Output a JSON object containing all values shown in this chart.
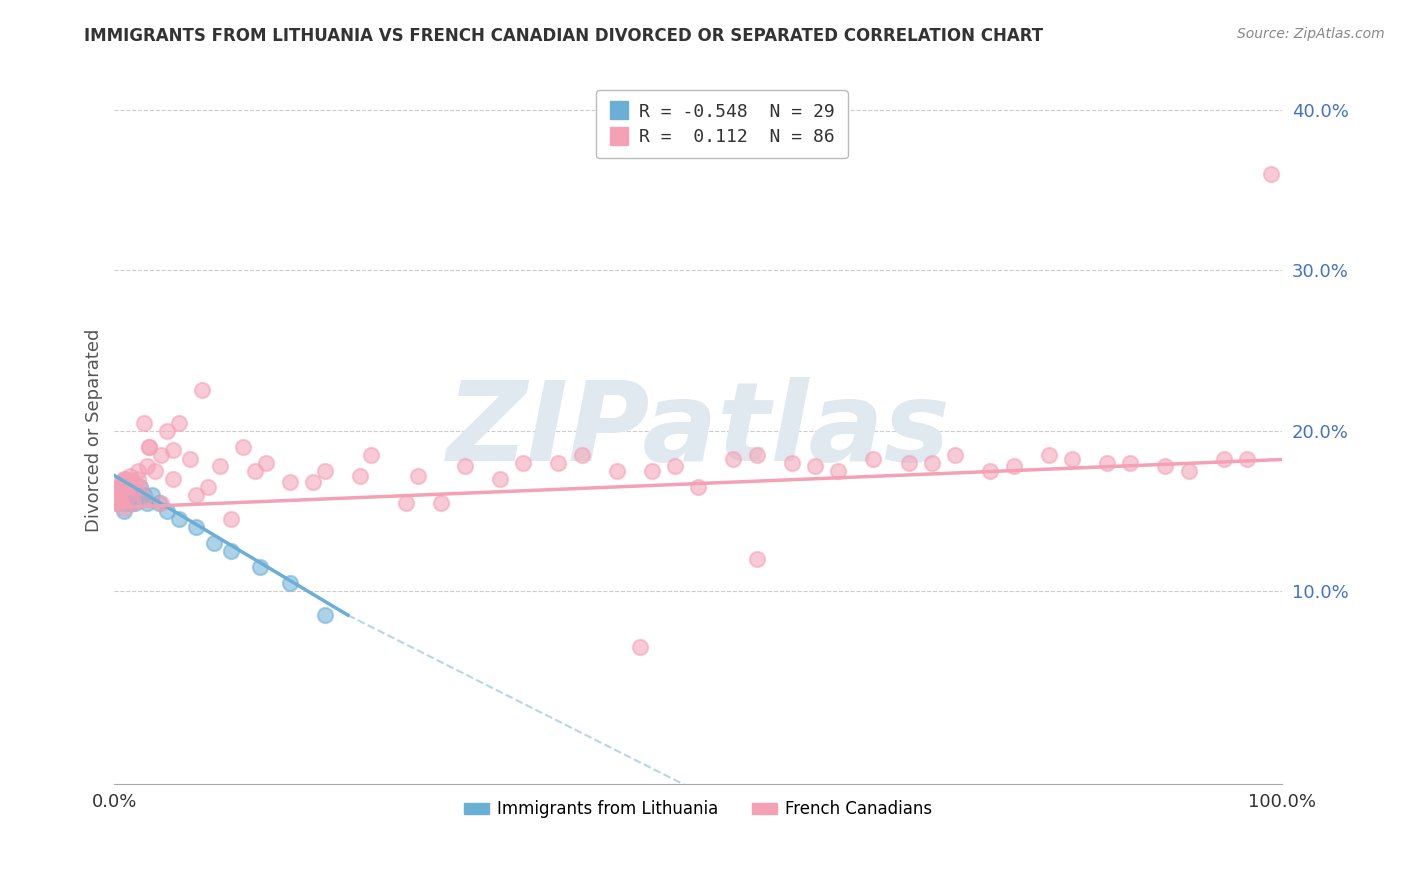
{
  "title": "IMMIGRANTS FROM LITHUANIA VS FRENCH CANADIAN DIVORCED OR SEPARATED CORRELATION CHART",
  "source": "Source: ZipAtlas.com",
  "ylabel": "Divorced or Separated",
  "watermark": "ZIPatlas",
  "legend_entries": [
    {
      "label": "Immigrants from Lithuania",
      "R": -0.548,
      "N": 29,
      "color": "#6baed6"
    },
    {
      "label": "French Canadians",
      "R": 0.112,
      "N": 86,
      "color": "#f4a0b5"
    }
  ],
  "blue_scatter_x": [
    0.2,
    0.3,
    0.4,
    0.5,
    0.6,
    0.7,
    0.8,
    0.9,
    1.0,
    1.1,
    1.2,
    1.3,
    1.5,
    1.6,
    1.8,
    2.0,
    2.2,
    2.5,
    2.8,
    3.2,
    3.8,
    4.5,
    5.5,
    7.0,
    8.5,
    10.0,
    12.5,
    15.0,
    18.0
  ],
  "blue_scatter_y": [
    15.5,
    16.2,
    15.8,
    16.0,
    15.5,
    16.5,
    15.0,
    15.8,
    16.2,
    15.5,
    16.0,
    16.5,
    15.5,
    16.0,
    15.5,
    16.0,
    16.5,
    16.0,
    15.5,
    16.0,
    15.5,
    15.0,
    14.5,
    14.0,
    13.0,
    12.5,
    11.5,
    10.5,
    8.5
  ],
  "pink_scatter_x": [
    0.1,
    0.2,
    0.3,
    0.4,
    0.5,
    0.6,
    0.7,
    0.8,
    0.9,
    1.0,
    1.1,
    1.2,
    1.3,
    1.5,
    1.6,
    1.8,
    2.0,
    2.2,
    2.5,
    2.8,
    3.0,
    3.5,
    4.0,
    4.5,
    5.0,
    5.5,
    6.5,
    7.5,
    9.0,
    11.0,
    13.0,
    15.0,
    18.0,
    22.0,
    26.0,
    30.0,
    35.0,
    40.0,
    46.0,
    50.0,
    55.0,
    60.0,
    65.0,
    70.0,
    75.0,
    80.0,
    85.0,
    90.0,
    95.0,
    99.0,
    28.0,
    33.0,
    38.0,
    43.0,
    48.0,
    53.0,
    58.0,
    62.0,
    68.0,
    72.0,
    77.0,
    82.0,
    87.0,
    92.0,
    97.0,
    8.0,
    12.0,
    17.0,
    21.0,
    25.0,
    5.0,
    3.0,
    2.0,
    1.5,
    1.0,
    0.8,
    0.6,
    0.5,
    0.4,
    0.3,
    55.0,
    45.0,
    10.0,
    7.0,
    4.0,
    2.5
  ],
  "pink_scatter_y": [
    16.0,
    15.5,
    16.2,
    15.8,
    16.5,
    15.5,
    16.8,
    15.2,
    17.0,
    16.5,
    15.8,
    16.5,
    17.2,
    16.8,
    15.5,
    16.5,
    17.0,
    16.5,
    20.5,
    17.8,
    19.0,
    17.5,
    18.5,
    20.0,
    18.8,
    20.5,
    18.2,
    22.5,
    17.8,
    19.0,
    18.0,
    16.8,
    17.5,
    18.5,
    17.2,
    17.8,
    18.0,
    18.5,
    17.5,
    16.5,
    18.5,
    17.8,
    18.2,
    18.0,
    17.5,
    18.5,
    18.0,
    17.8,
    18.2,
    36.0,
    15.5,
    17.0,
    18.0,
    17.5,
    17.8,
    18.2,
    18.0,
    17.5,
    18.0,
    18.5,
    17.8,
    18.2,
    18.0,
    17.5,
    18.2,
    16.5,
    17.5,
    16.8,
    17.2,
    15.5,
    17.0,
    19.0,
    17.5,
    16.8,
    16.5,
    17.0,
    16.8,
    15.8,
    16.5,
    16.2,
    12.0,
    6.5,
    14.5,
    16.0,
    15.5,
    15.8
  ],
  "ytick_positions": [
    10,
    20,
    30,
    40
  ],
  "ytick_labels": [
    "10.0%",
    "20.0%",
    "30.0%",
    "40.0%"
  ],
  "xtick_positions": [
    0,
    100
  ],
  "xtick_labels": [
    "0.0%",
    "100.0%"
  ],
  "ylim": [
    -2,
    42
  ],
  "xlim": [
    0,
    100
  ],
  "blue_trend_x0": 0,
  "blue_trend_y0": 17.2,
  "blue_trend_x1": 20,
  "blue_trend_y1": 8.5,
  "blue_dash_x1": 50,
  "blue_dash_y1": -2.5,
  "pink_trend_x0": 0,
  "pink_trend_y0": 15.2,
  "pink_trend_x1": 100,
  "pink_trend_y1": 18.2,
  "background_color": "#ffffff",
  "grid_color": "#cccccc",
  "blue_color": "#6baed6",
  "pink_color": "#f4a0b5",
  "ytick_color": "#4472c4"
}
